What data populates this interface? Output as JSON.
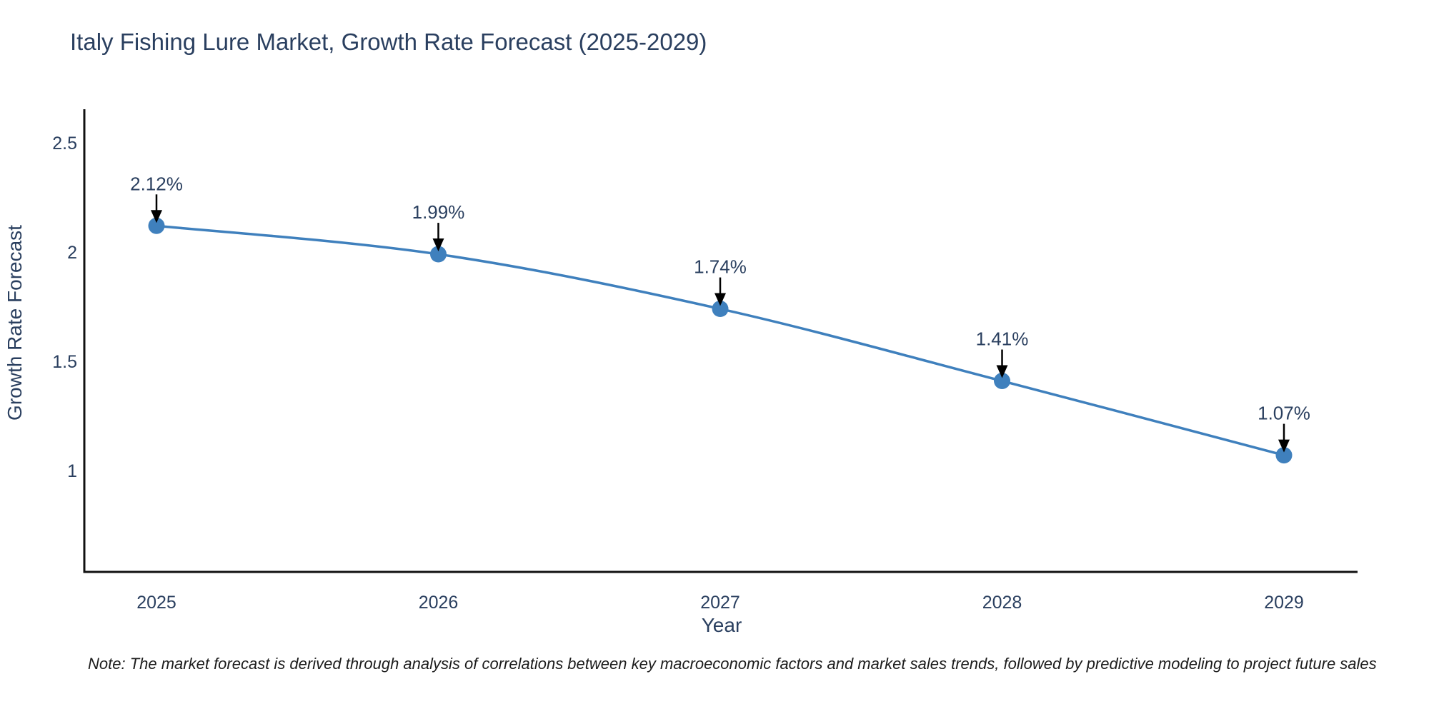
{
  "title": "Italy Fishing Lure Market, Growth Rate Forecast (2025-2029)",
  "note": "Note: The market forecast is derived through analysis of correlations between key macroeconomic factors and market sales trends, followed by predictive modeling to project future sales",
  "chart_data": {
    "type": "line",
    "title": "Italy Fishing Lure Market, Growth Rate Forecast (2025-2029)",
    "x": [
      2025,
      2026,
      2027,
      2028,
      2029
    ],
    "xtick_labels": [
      "2025",
      "2026",
      "2027",
      "2028",
      "2029"
    ],
    "series": [
      {
        "name": "Growth Rate Forecast",
        "values": [
          2.12,
          1.99,
          1.74,
          1.41,
          1.07
        ]
      }
    ],
    "point_labels": [
      "2.12%",
      "1.99%",
      "1.74%",
      "1.41%",
      "1.07%"
    ],
    "xlabel": "Year",
    "ylabel": "Growth Rate Forecast",
    "yticks": [
      2.5,
      2,
      1.5,
      1
    ],
    "ytick_labels": [
      "2.5",
      "2",
      "1.5",
      "1"
    ],
    "ylim": [
      0.53,
      2.65
    ],
    "grid": false,
    "legend": false,
    "annotation_style": "arrow-down-to-point",
    "colors": {
      "line": "#3f80bd",
      "marker": "#3f80bd",
      "axis": "#111111",
      "tick_text": "#2a3f5f",
      "title_text": "#2a3f5f",
      "annotation_text": "#2a3f5f",
      "arrow": "#000000",
      "background": "#ffffff"
    }
  }
}
